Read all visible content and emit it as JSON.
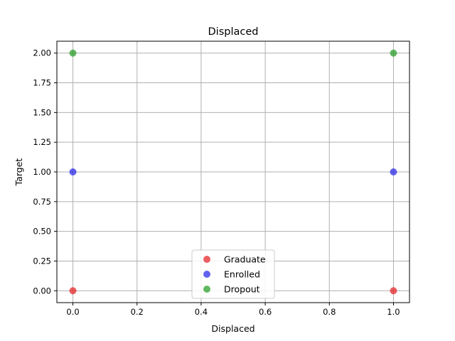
{
  "chart_data": {
    "type": "scatter",
    "title": "Displaced",
    "xlabel": "Displaced",
    "ylabel": "Target",
    "xlim": [
      -0.05,
      1.05
    ],
    "ylim": [
      -0.1,
      2.1
    ],
    "xticks": [
      0.0,
      0.2,
      0.4,
      0.6,
      0.8,
      1.0
    ],
    "xtick_labels": [
      "0.0",
      "0.2",
      "0.4",
      "0.6",
      "0.8",
      "1.0"
    ],
    "yticks": [
      0.0,
      0.25,
      0.5,
      0.75,
      1.0,
      1.25,
      1.5,
      1.75,
      2.0
    ],
    "ytick_labels": [
      "0.00",
      "0.25",
      "0.50",
      "0.75",
      "1.00",
      "1.25",
      "1.50",
      "1.75",
      "2.00"
    ],
    "grid": true,
    "legend_position": "lower-center",
    "series": [
      {
        "name": "Graduate",
        "color": "#e41a1c",
        "x": [
          0,
          1
        ],
        "y": [
          0,
          0
        ]
      },
      {
        "name": "Enrolled",
        "color": "#1f1fe8",
        "x": [
          0,
          1
        ],
        "y": [
          1,
          1
        ]
      },
      {
        "name": "Dropout",
        "color": "#1f9a1f",
        "x": [
          0,
          1
        ],
        "y": [
          2,
          2
        ]
      }
    ]
  }
}
